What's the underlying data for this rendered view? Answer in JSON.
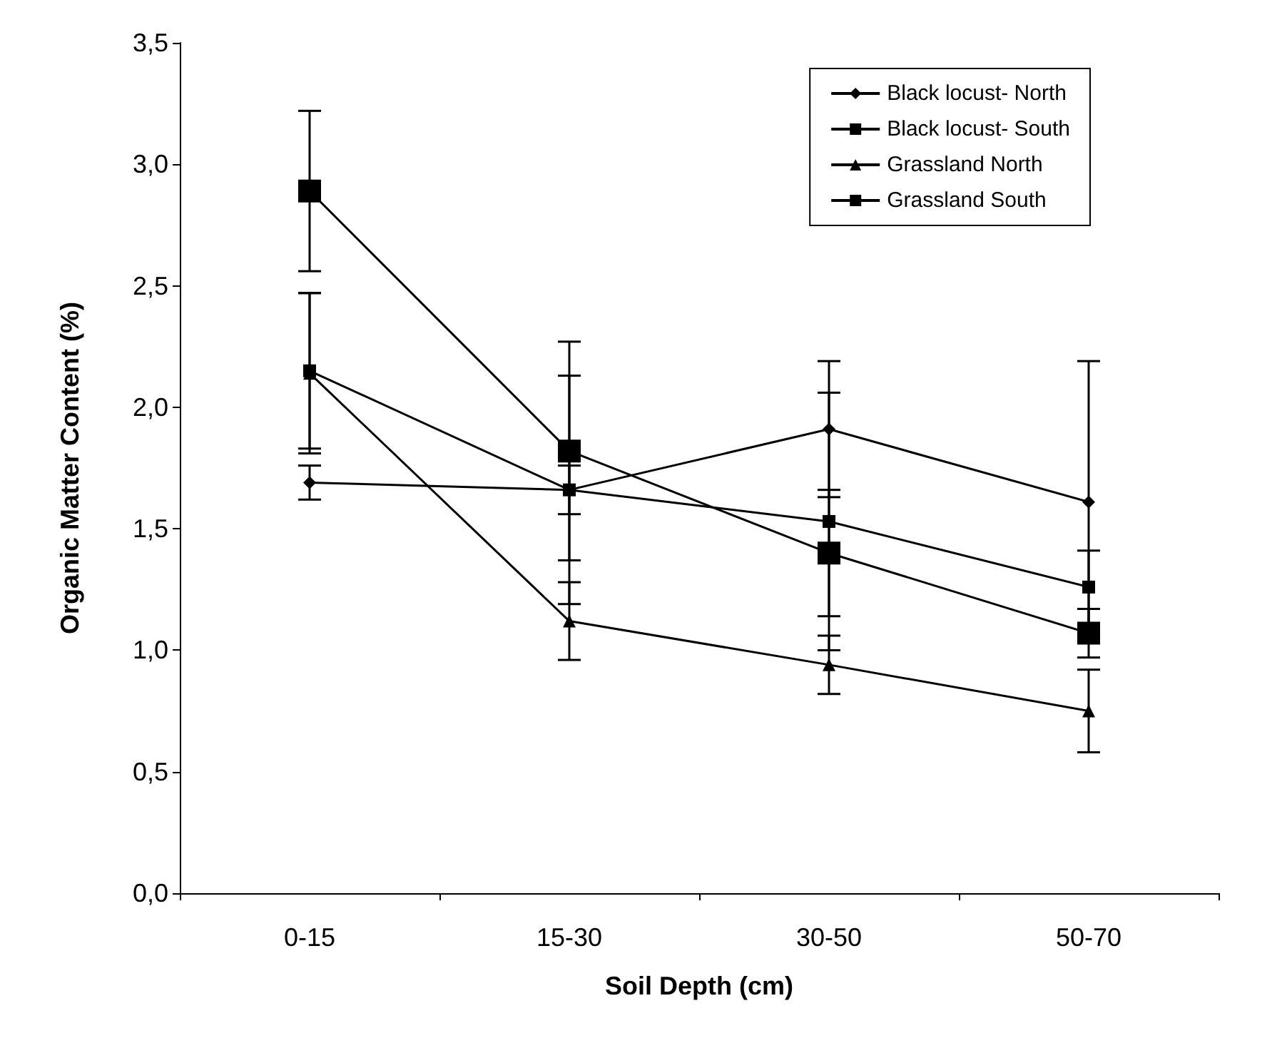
{
  "chart_data": {
    "type": "line",
    "xlabel": "Soil Depth (cm)",
    "ylabel": "Organic Matter Content (%)",
    "categories": [
      "0-15",
      "15-30",
      "30-50",
      "50-70"
    ],
    "series": [
      {
        "name": "Black locust- North",
        "color": "#000000",
        "marker": "diamond",
        "values": [
          1.69,
          1.66,
          1.91,
          1.61
        ],
        "errors": [
          0.07,
          0.1,
          0.28,
          0.58
        ]
      },
      {
        "name": "Black locust- South",
        "color": "#000000",
        "marker": "square",
        "values": [
          2.15,
          1.66,
          1.53,
          1.26
        ],
        "errors": [
          0.32,
          0.47,
          0.53,
          0.15
        ]
      },
      {
        "name": "Grassland North",
        "color": "#000000",
        "marker": "triangle",
        "values": [
          2.14,
          1.12,
          0.94,
          0.75
        ],
        "errors": [
          0.33,
          0.16,
          0.12,
          0.17
        ]
      },
      {
        "name": "Grassland South",
        "color": "#000000",
        "marker": "square",
        "values": [
          2.89,
          1.82,
          1.4,
          1.07
        ],
        "errors": [
          0.33,
          0.45,
          0.26,
          0.1
        ]
      }
    ],
    "ylim": [
      0,
      3.5
    ],
    "yticks": [
      {
        "value": 0,
        "label": "0,0"
      },
      {
        "value": 0.5,
        "label": "0,5"
      },
      {
        "value": 1,
        "label": "1,0"
      },
      {
        "value": 1.5,
        "label": "1,5"
      },
      {
        "value": 2,
        "label": "2,0"
      },
      {
        "value": 2.5,
        "label": "2,5"
      },
      {
        "value": 3,
        "label": "3,0"
      },
      {
        "value": 3.5,
        "label": "3,5"
      }
    ],
    "grid": false,
    "legend": "top right",
    "line_style": "solid"
  }
}
